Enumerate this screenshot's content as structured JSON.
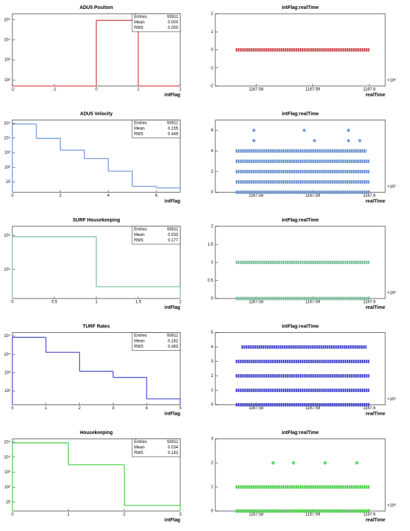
{
  "chart_data": [
    {
      "type": "histogram",
      "title": "ADU5 Position",
      "x_label": "intFlag",
      "color": "#d04848",
      "log_y": true,
      "bins": [
        -2,
        -1,
        0,
        1,
        2
      ],
      "counts": [
        0,
        0,
        93911,
        0
      ],
      "xlim": [
        -2,
        2
      ],
      "xticks": [
        -2,
        -1,
        0,
        1,
        2
      ],
      "ylim": [
        50,
        200000
      ],
      "yticks": [
        {
          "value": 100,
          "label": "10²"
        },
        {
          "value": 1000,
          "label": "10³"
        },
        {
          "value": 10000,
          "label": "10⁴"
        },
        {
          "value": 100000,
          "label": "10⁵"
        }
      ],
      "stats": {
        "labels": [
          "Entries",
          "Mean",
          "RMS"
        ],
        "values": [
          "93911",
          "0.000",
          "0.000"
        ]
      }
    },
    {
      "type": "scatter",
      "title": "intFlag:realTime",
      "x_label": "realTime",
      "x_multiplier": "×10⁶",
      "color": "#cc5555",
      "xlim": [
        1167.5728,
        1167.6028
      ],
      "xticks": [
        1167.58,
        1167.59,
        1167.6
      ],
      "ylim": [
        -2,
        2
      ],
      "yticks": [
        -2,
        -1,
        0,
        1,
        2
      ],
      "bands": [
        {
          "y": 0,
          "x": [
            1167.5764,
            1167.6
          ]
        }
      ],
      "points": {
        "x": [],
        "y": []
      }
    },
    {
      "type": "histogram",
      "title": "ADU5 Velocity",
      "x_label": "intFlag",
      "color": "#6f95d0",
      "log_y": true,
      "bins": [
        0,
        1,
        2,
        3,
        4,
        5,
        6,
        7
      ],
      "counts": [
        90000,
        9500,
        1500,
        400,
        55,
        5,
        4
      ],
      "xlim": [
        0,
        7
      ],
      "xticks": [
        0,
        2,
        4,
        6
      ],
      "ylim": [
        2,
        170000
      ],
      "yticks": [
        10,
        {
          "value": 100,
          "label": "10²"
        },
        {
          "value": 1000,
          "label": "10³"
        },
        {
          "value": 10000,
          "label": "10⁴"
        },
        {
          "value": 100000,
          "label": "10⁵"
        }
      ],
      "stats": {
        "labels": [
          "Entries",
          "Mean",
          "RMS"
        ],
        "values": [
          "93911",
          "0.155",
          "0.449"
        ]
      }
    },
    {
      "type": "scatter",
      "title": "intFlag:realTime",
      "x_label": "realTime",
      "x_multiplier": "×10⁶",
      "color": "#6f95d0",
      "xlim": [
        1167.5728,
        1167.6028
      ],
      "xticks": [
        1167.58,
        1167.59,
        1167.6
      ],
      "ylim": [
        0,
        7
      ],
      "yticks": [
        0,
        2,
        4,
        6
      ],
      "bands": [
        {
          "y": 0,
          "x": [
            1167.5764,
            1167.6
          ]
        },
        {
          "y": 1,
          "x": [
            1167.5764,
            1167.6
          ]
        },
        {
          "y": 2,
          "x": [
            1167.5764,
            1167.6
          ]
        },
        {
          "y": 3,
          "x": [
            1167.5764,
            1167.6
          ]
        },
        {
          "y": 4,
          "x": [
            1167.5764,
            1167.5995
          ]
        }
      ],
      "points": {
        "x": [
          1167.5796,
          1167.5903,
          1167.5963,
          1167.5983,
          1167.5796,
          1167.5885,
          1167.5963
        ],
        "y": [
          5,
          5,
          5,
          5,
          6,
          6,
          6
        ]
      }
    },
    {
      "type": "histogram",
      "title": "SURF Housekeeping",
      "x_label": "intFlag",
      "color": "#80c0a0",
      "log_y": true,
      "bins": [
        0,
        1,
        2
      ],
      "counts": [
        90800,
        3100
      ],
      "xlim": [
        0,
        2
      ],
      "xticks": [
        0,
        0.5,
        1,
        1.5,
        2
      ],
      "ylim": [
        1400,
        185000
      ],
      "yticks": [
        {
          "value": 10000,
          "label": "10⁴"
        },
        {
          "value": 100000,
          "label": "10⁵"
        }
      ],
      "stats": {
        "labels": [
          "Entries",
          "Mean",
          "RMS"
        ],
        "values": [
          "93911",
          "0.033",
          "0.177"
        ]
      }
    },
    {
      "type": "scatter",
      "title": "intFlag:realTime",
      "x_label": "realTime",
      "x_multiplier": "×10⁶",
      "color": "#80c0a0",
      "xlim": [
        1167.5728,
        1167.6028
      ],
      "xticks": [
        1167.58,
        1167.59,
        1167.6
      ],
      "ylim": [
        0,
        2
      ],
      "yticks": [
        0,
        0.5,
        1,
        1.5,
        2
      ],
      "bands": [
        {
          "y": 0,
          "x": [
            1167.5764,
            1167.6
          ]
        },
        {
          "y": 1,
          "x": [
            1167.5764,
            1167.6
          ]
        }
      ],
      "points": {
        "x": [],
        "y": []
      }
    },
    {
      "type": "histogram",
      "title": "TURF Rates",
      "x_label": "intFlag",
      "color": "#5050d0",
      "log_y": true,
      "bins": [
        0,
        1,
        2,
        3,
        4,
        5
      ],
      "counts": [
        85000,
        13000,
        1200,
        560,
        38
      ],
      "xlim": [
        0,
        5
      ],
      "xticks": [
        0,
        1,
        2,
        3,
        4,
        5
      ],
      "ylim": [
        18,
        155000
      ],
      "yticks": [
        {
          "value": 100,
          "label": "10²"
        },
        {
          "value": 1000,
          "label": "10³"
        },
        {
          "value": 10000,
          "label": "10⁴"
        },
        {
          "value": 100000,
          "label": "10⁵"
        }
      ],
      "stats": {
        "labels": [
          "Entries",
          "Mean",
          "RMS"
        ],
        "values": [
          "93911",
          "0.182",
          "0.463"
        ]
      }
    },
    {
      "type": "scatter",
      "title": "intFlag:realTime",
      "x_label": "realTime",
      "x_multiplier": "×10⁶",
      "color": "#5050d0",
      "xlim": [
        1167.5728,
        1167.6028
      ],
      "xticks": [
        1167.58,
        1167.59,
        1167.6
      ],
      "ylim": [
        0,
        5
      ],
      "yticks": [
        0,
        1,
        2,
        3,
        4,
        5
      ],
      "bands": [
        {
          "y": 0,
          "x": [
            1167.5764,
            1167.6
          ]
        },
        {
          "y": 1,
          "x": [
            1167.5764,
            1167.6
          ]
        },
        {
          "y": 2,
          "x": [
            1167.5764,
            1167.6
          ]
        },
        {
          "y": 3,
          "x": [
            1167.5764,
            1167.6
          ]
        },
        {
          "y": 4,
          "x": [
            1167.5774,
            1167.5995
          ]
        }
      ],
      "points": {
        "x": [],
        "y": []
      }
    },
    {
      "type": "histogram",
      "title": "Housekeeping",
      "x_label": "intFlag",
      "color": "#50d050",
      "log_y": true,
      "bins": [
        0,
        1,
        2,
        3
      ],
      "counts": [
        92000,
        3100,
        6
      ],
      "xlim": [
        0,
        3
      ],
      "xticks": [
        0,
        1,
        2,
        3
      ],
      "ylim": [
        2.5,
        170000
      ],
      "yticks": [
        10,
        {
          "value": 100,
          "label": "10²"
        },
        {
          "value": 1000,
          "label": "10³"
        },
        {
          "value": 10000,
          "label": "10⁴"
        },
        {
          "value": 100000,
          "label": "10⁵"
        }
      ],
      "stats": {
        "labels": [
          "Entries",
          "Mean",
          "RMS"
        ],
        "values": [
          "93911",
          "0.034",
          "0.181"
        ]
      }
    },
    {
      "type": "scatter",
      "title": "intFlag:realTime",
      "x_label": "realTime",
      "x_multiplier": "×10⁶",
      "color": "#50d050",
      "xlim": [
        1167.5728,
        1167.6028
      ],
      "xticks": [
        1167.58,
        1167.59,
        1167.6
      ],
      "ylim": [
        0,
        3
      ],
      "yticks": [
        0,
        1,
        2,
        3
      ],
      "bands": [
        {
          "y": 0,
          "x": [
            1167.5764,
            1167.6
          ]
        },
        {
          "y": 1,
          "x": [
            1167.5764,
            1167.6
          ]
        }
      ],
      "points": {
        "x": [
          1167.583,
          1167.5866,
          1167.5922,
          1167.5978
        ],
        "y": [
          2,
          2,
          2,
          2
        ]
      }
    }
  ]
}
